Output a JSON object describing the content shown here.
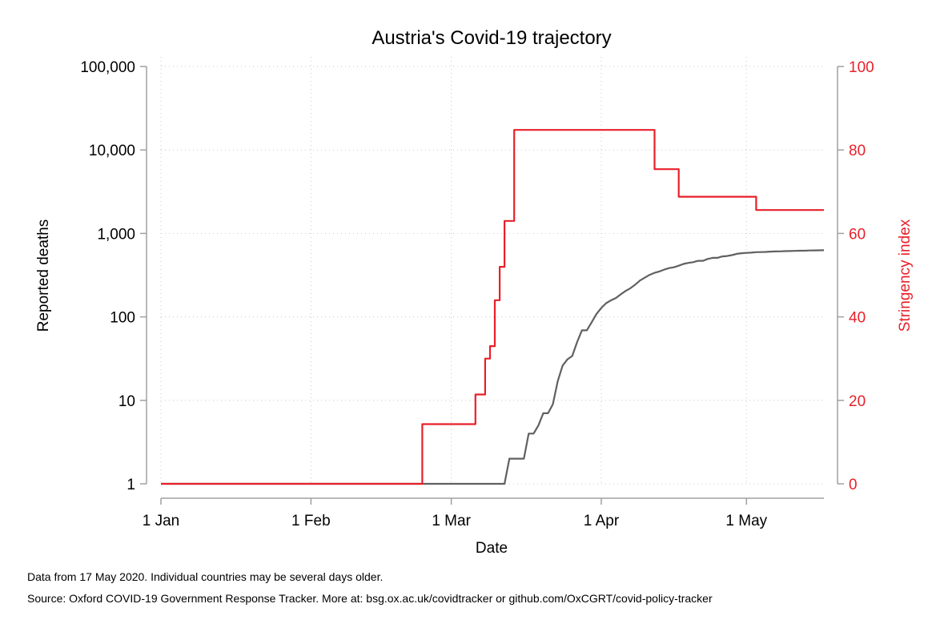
{
  "chart_data": {
    "type": "line",
    "title": "Austria's Covid-19 trajectory",
    "xlabel": "Date",
    "ylabel_left": "Reported deaths",
    "ylabel_right": "Stringency index",
    "x_axis": {
      "range": [
        "2020-01-01",
        "2020-05-17"
      ],
      "ticks": [
        {
          "date": "2020-01-01",
          "label": "1 Jan"
        },
        {
          "date": "2020-02-01",
          "label": "1 Feb"
        },
        {
          "date": "2020-03-01",
          "label": "1 Mar"
        },
        {
          "date": "2020-04-01",
          "label": "1 Apr"
        },
        {
          "date": "2020-05-01",
          "label": "1 May"
        }
      ]
    },
    "y_left": {
      "scale": "log",
      "range": [
        1,
        100000
      ],
      "ticks": [
        {
          "value": 1,
          "label": "1"
        },
        {
          "value": 10,
          "label": "10"
        },
        {
          "value": 100,
          "label": "100"
        },
        {
          "value": 1000,
          "label": "1,000"
        },
        {
          "value": 10000,
          "label": "10,000"
        },
        {
          "value": 100000,
          "label": "100,000"
        }
      ]
    },
    "y_right": {
      "scale": "linear",
      "range": [
        0,
        100
      ],
      "ticks": [
        {
          "value": 0,
          "label": "0"
        },
        {
          "value": 20,
          "label": "20"
        },
        {
          "value": 40,
          "label": "40"
        },
        {
          "value": 60,
          "label": "60"
        },
        {
          "value": 80,
          "label": "80"
        },
        {
          "value": 100,
          "label": "100"
        }
      ]
    },
    "grid": true,
    "series": [
      {
        "axis": "left",
        "color": "#606060",
        "points": [
          [
            "2020-01-01",
            1
          ],
          [
            "2020-03-12",
            1
          ],
          [
            "2020-03-13",
            2
          ],
          [
            "2020-03-15",
            2
          ],
          [
            "2020-03-16",
            2
          ],
          [
            "2020-03-17",
            4
          ],
          [
            "2020-03-18",
            4
          ],
          [
            "2020-03-19",
            5
          ],
          [
            "2020-03-20",
            7
          ],
          [
            "2020-03-21",
            7
          ],
          [
            "2020-03-22",
            9
          ],
          [
            "2020-03-23",
            17
          ],
          [
            "2020-03-24",
            26
          ],
          [
            "2020-03-25",
            31
          ],
          [
            "2020-03-26",
            34
          ],
          [
            "2020-03-27",
            50
          ],
          [
            "2020-03-28",
            69
          ],
          [
            "2020-03-29",
            69
          ],
          [
            "2020-03-30",
            86
          ],
          [
            "2020-03-31",
            108
          ],
          [
            "2020-04-01",
            128
          ],
          [
            "2020-04-02",
            146
          ],
          [
            "2020-04-03",
            158
          ],
          [
            "2020-04-04",
            168
          ],
          [
            "2020-04-05",
            186
          ],
          [
            "2020-04-06",
            204
          ],
          [
            "2020-04-07",
            220
          ],
          [
            "2020-04-08",
            243
          ],
          [
            "2020-04-09",
            273
          ],
          [
            "2020-04-10",
            295
          ],
          [
            "2020-04-11",
            319
          ],
          [
            "2020-04-12",
            337
          ],
          [
            "2020-04-13",
            350
          ],
          [
            "2020-04-14",
            368
          ],
          [
            "2020-04-15",
            384
          ],
          [
            "2020-04-16",
            393
          ],
          [
            "2020-04-17",
            410
          ],
          [
            "2020-04-18",
            431
          ],
          [
            "2020-04-19",
            443
          ],
          [
            "2020-04-20",
            452
          ],
          [
            "2020-04-21",
            470
          ],
          [
            "2020-04-22",
            470
          ],
          [
            "2020-04-23",
            494
          ],
          [
            "2020-04-24",
            510
          ],
          [
            "2020-04-25",
            510
          ],
          [
            "2020-04-26",
            530
          ],
          [
            "2020-04-27",
            536
          ],
          [
            "2020-04-28",
            549
          ],
          [
            "2020-04-29",
            569
          ],
          [
            "2020-04-30",
            580
          ],
          [
            "2020-05-01",
            584
          ],
          [
            "2020-05-02",
            589
          ],
          [
            "2020-05-03",
            596
          ],
          [
            "2020-05-04",
            598
          ],
          [
            "2020-05-05",
            600
          ],
          [
            "2020-05-06",
            606
          ],
          [
            "2020-05-07",
            608
          ],
          [
            "2020-05-08",
            609
          ],
          [
            "2020-05-09",
            614
          ],
          [
            "2020-05-10",
            615
          ],
          [
            "2020-05-11",
            618
          ],
          [
            "2020-05-12",
            620
          ],
          [
            "2020-05-13",
            620
          ],
          [
            "2020-05-14",
            624
          ],
          [
            "2020-05-15",
            626
          ],
          [
            "2020-05-16",
            628
          ],
          [
            "2020-05-17",
            629
          ]
        ]
      },
      {
        "axis": "right",
        "color": "#e8202a",
        "step": true,
        "points": [
          [
            "2020-01-01",
            0
          ],
          [
            "2020-02-24",
            14.3
          ],
          [
            "2020-03-06",
            21.4
          ],
          [
            "2020-03-08",
            30
          ],
          [
            "2020-03-09",
            33
          ],
          [
            "2020-03-10",
            44
          ],
          [
            "2020-03-11",
            52
          ],
          [
            "2020-03-12",
            63
          ],
          [
            "2020-03-14",
            84.8
          ],
          [
            "2020-04-12",
            75.4
          ],
          [
            "2020-04-17",
            68.8
          ],
          [
            "2020-05-03",
            65.6
          ],
          [
            "2020-05-17",
            65.6
          ]
        ]
      }
    ]
  },
  "notes": {
    "line1": "Data from 17 May 2020. Individual countries may be several days older.",
    "line2": "Source: Oxford COVID-19 Government Response Tracker. More at: bsg.ox.ac.uk/covidtracker or github.com/OxCGRT/covid-policy-tracker"
  }
}
